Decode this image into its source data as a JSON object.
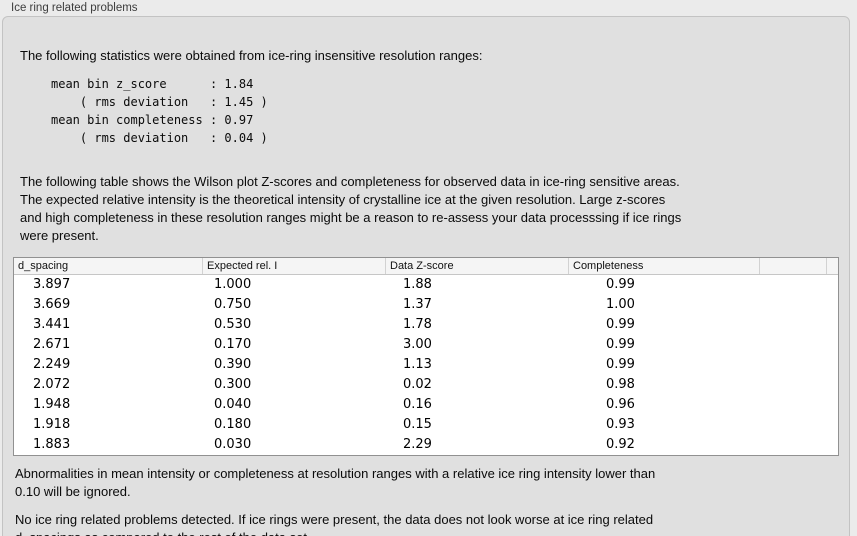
{
  "panel": {
    "title": "Ice ring related problems",
    "intro": "The following statistics were obtained from ice-ring insensitive resolution ranges:",
    "stats_block": "mean bin z_score      : 1.84\n    ( rms deviation   : 1.45 )\nmean bin completeness : 0.97\n    ( rms deviation   : 0.04 )",
    "stats": {
      "mean_bin_z_score": "1.84",
      "z_score_rms_deviation": "1.45",
      "mean_bin_completeness": "0.97",
      "completeness_rms_deviation": "0.04"
    },
    "table_description": "The following table shows the Wilson plot Z-scores and completeness for observed data in ice-ring sensitive areas.\nThe expected relative intensity is the theoretical intensity of crystalline ice at the given resolution. Large z-scores\nand high completeness in these resolution ranges might be a reason to re-assess your data processsing if ice rings\nwere present.",
    "note_ignored": "Abnormalities in mean intensity or completeness at resolution ranges with a relative ice ring intensity lower than\n0.10 will be ignored.",
    "conclusion": "No ice ring related problems detected. If ice rings were present, the data does not look worse at ice ring related\nd_spacings as compared to the rest of the data set."
  },
  "table": {
    "columns": [
      "d_spacing",
      "Expected rel. I",
      "Data Z-score",
      "Completeness"
    ],
    "rows": [
      [
        "3.897",
        "1.000",
        "1.88",
        "0.99"
      ],
      [
        "3.669",
        "0.750",
        "1.37",
        "1.00"
      ],
      [
        "3.441",
        "0.530",
        "1.78",
        "0.99"
      ],
      [
        "2.671",
        "0.170",
        "3.00",
        "0.99"
      ],
      [
        "2.249",
        "0.390",
        "1.13",
        "0.99"
      ],
      [
        "2.072",
        "0.300",
        "0.02",
        "0.98"
      ],
      [
        "1.948",
        "0.040",
        "0.16",
        "0.96"
      ],
      [
        "1.918",
        "0.180",
        "0.15",
        "0.93"
      ],
      [
        "1.883",
        "0.030",
        "2.29",
        "0.92"
      ]
    ]
  },
  "colors": {
    "page_bg": "#ebebeb",
    "panel_bg": "#e0e0e0",
    "panel_border": "#c3c3c3",
    "table_border": "#919191",
    "table_header_bg": "#f5f5f5",
    "text": "#0a0a0a",
    "title_text": "#3d3d3d"
  }
}
